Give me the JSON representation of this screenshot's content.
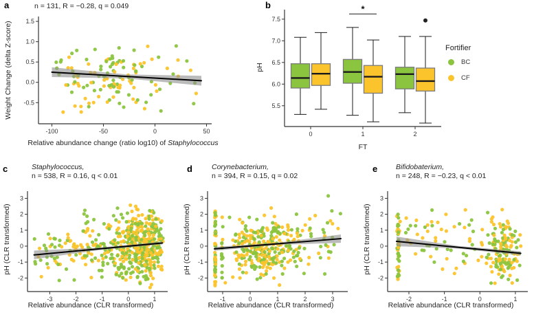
{
  "palette": {
    "green": "#8bc53f",
    "yellow": "#fcc42c",
    "band": "#8e8e8e",
    "regression_line": "#000000",
    "box_border": "#7a7a7a",
    "median_line": "#1a1a1a",
    "axis": "#333333"
  },
  "legend": {
    "title": "Fortifier",
    "items": [
      {
        "label": "BC",
        "color_key": "green"
      },
      {
        "label": "CF",
        "color_key": "yellow"
      }
    ]
  },
  "chart_data": [
    {
      "panel": "a",
      "type": "scatter",
      "title_lines": [
        {
          "text": "n = 131, R = −0.28, q = 0.049",
          "italic": false
        }
      ],
      "stats": {
        "n": 131,
        "R": -0.28,
        "q": "0.049"
      },
      "xlabel_parts": [
        {
          "text": "Relative abundance change (ratio log10) of ",
          "italic": false
        },
        {
          "text": "Staphylococcus",
          "italic": true
        }
      ],
      "ylabel": "Weight Change (delta Z-score)",
      "xlim": [
        -113,
        55
      ],
      "ylim": [
        -1.02,
        1.62
      ],
      "xticks": [
        [
          -100,
          "-100"
        ],
        [
          -50,
          "-50"
        ],
        [
          0,
          "0"
        ],
        [
          50,
          "50"
        ]
      ],
      "yticks": [
        [
          1.5,
          "1.5"
        ],
        [
          1.0,
          "1.0"
        ],
        [
          0.5,
          "0.5"
        ],
        [
          0.0,
          "0.0"
        ],
        [
          -0.5,
          "-0.5"
        ]
      ],
      "regression": {
        "x1": -100,
        "y1": 0.25,
        "x2": 45,
        "y2": 0.04,
        "band": [
          0.12,
          0.05,
          0.12
        ]
      },
      "points": {
        "seed": 11,
        "n": 131,
        "clip": {
          "x": [
            -101,
            45
          ],
          "y": [
            -0.86,
            0.91
          ]
        },
        "clusters": [
          {
            "w": 0.5,
            "x": {
              "t": "n",
              "mu": -30,
              "sd": 28
            },
            "y": {
              "t": "n",
              "mu": 0.15,
              "sd": 0.4
            }
          },
          {
            "w": 0.3,
            "x": {
              "t": "n",
              "mu": -65,
              "sd": 22
            },
            "y": {
              "t": "n",
              "mu": 0.1,
              "sd": 0.42
            }
          },
          {
            "w": 0.2,
            "x": {
              "t": "u",
              "min": -100,
              "max": 40
            },
            "y": {
              "t": "u",
              "min": -0.6,
              "max": 0.9
            }
          }
        ]
      }
    },
    {
      "panel": "b",
      "type": "boxplot",
      "xlabel": "FT",
      "ylabel": "pH",
      "ylim": [
        5.02,
        7.72
      ],
      "yticks": [
        [
          5.5,
          "5.5"
        ],
        [
          6.0,
          "6.0"
        ],
        [
          6.5,
          "6.5"
        ],
        [
          7.0,
          "7.0"
        ],
        [
          7.5,
          "7.5"
        ]
      ],
      "groups": [
        {
          "label": "0",
          "boxes": [
            {
              "fortifier": "BC",
              "color": "green",
              "whislo": 5.3,
              "q1": 5.91,
              "med": 6.14,
              "q3": 6.47,
              "whishi": 7.08,
              "outliers": []
            },
            {
              "fortifier": "CF",
              "color": "yellow",
              "whislo": 5.42,
              "q1": 5.97,
              "med": 6.24,
              "q3": 6.47,
              "whishi": 7.19,
              "outliers": []
            }
          ]
        },
        {
          "label": "1",
          "boxes": [
            {
              "fortifier": "BC",
              "color": "green",
              "whislo": 5.28,
              "q1": 6.02,
              "med": 6.28,
              "q3": 6.57,
              "whishi": 7.31,
              "outliers": []
            },
            {
              "fortifier": "CF",
              "color": "yellow",
              "whislo": 5.13,
              "q1": 5.79,
              "med": 6.17,
              "q3": 6.43,
              "whishi": 7.02,
              "outliers": []
            }
          ]
        },
        {
          "label": "2",
          "boxes": [
            {
              "fortifier": "BC",
              "color": "green",
              "whislo": 5.34,
              "q1": 5.89,
              "med": 6.23,
              "q3": 6.39,
              "whishi": 7.1,
              "outliers": []
            },
            {
              "fortifier": "CF",
              "color": "yellow",
              "whislo": 5.1,
              "q1": 5.84,
              "med": 6.07,
              "q3": 6.37,
              "whishi": 7.1,
              "outliers": [
                7.47
              ]
            }
          ]
        }
      ],
      "significance": {
        "group_index": 1,
        "symbol": "*",
        "y": 7.62
      }
    },
    {
      "panel": "c",
      "type": "scatter",
      "title_lines": [
        {
          "text": "Staphylococcus,",
          "italic": true
        },
        {
          "text": "n = 538, R = 0.16, q < 0.01",
          "italic": false
        }
      ],
      "stats": {
        "n": 538,
        "R": 0.16,
        "q": "< 0.01"
      },
      "xlabel_parts": [
        {
          "text": "Relative abundance (CLR transformed)",
          "italic": false
        }
      ],
      "ylabel": "pH (CLR transformed)",
      "xlim": [
        -3.85,
        1.5
      ],
      "ylim": [
        -2.85,
        3.45
      ],
      "xticks": [
        [
          -3,
          "-3"
        ],
        [
          -2,
          "-2"
        ],
        [
          -1,
          "-1"
        ],
        [
          0,
          "0"
        ],
        [
          1,
          "1"
        ]
      ],
      "yticks": [
        [
          3,
          "3"
        ],
        [
          2,
          "2"
        ],
        [
          1,
          "1"
        ],
        [
          0,
          "0"
        ],
        [
          -1,
          "-1"
        ],
        [
          -2,
          "-2"
        ]
      ],
      "regression": {
        "x1": -3.6,
        "y1": -0.55,
        "x2": 1.3,
        "y2": 0.2,
        "band": [
          0.27,
          0.08,
          0.09
        ]
      },
      "points": {
        "seed": 23,
        "n": 538,
        "clip": {
          "x": [
            -3.62,
            1.32
          ],
          "y": [
            -2.62,
            3.2
          ]
        },
        "clusters": [
          {
            "w": 0.6,
            "x": {
              "t": "n",
              "mu": 0.55,
              "sd": 0.5
            },
            "y": {
              "t": "n",
              "mu": 0.0,
              "sd": 1.05
            }
          },
          {
            "w": 0.3,
            "x": {
              "t": "n",
              "mu": -0.6,
              "sd": 0.9
            },
            "y": {
              "t": "n",
              "mu": -0.15,
              "sd": 1.0
            }
          },
          {
            "w": 0.1,
            "x": {
              "t": "u",
              "min": -3.6,
              "max": -1.2
            },
            "y": {
              "t": "n",
              "mu": -0.4,
              "sd": 0.85
            }
          }
        ]
      }
    },
    {
      "panel": "d",
      "type": "scatter",
      "title_lines": [
        {
          "text": "Corynebacterium,",
          "italic": true
        },
        {
          "text": "n = 394, R = 0.15, q = 0.02",
          "italic": false
        }
      ],
      "stats": {
        "n": 394,
        "R": 0.15,
        "q": "0.02"
      },
      "xlabel_parts": [
        {
          "text": "Relative abundance (CLR transformed)",
          "italic": false
        }
      ],
      "ylabel": "pH (CLR transformed)",
      "xlim": [
        -1.55,
        3.55
      ],
      "ylim": [
        -2.85,
        3.45
      ],
      "xticks": [
        [
          -1,
          "-1"
        ],
        [
          0,
          "0"
        ],
        [
          1,
          "1"
        ],
        [
          2,
          "2"
        ],
        [
          3,
          "3"
        ]
      ],
      "yticks": [
        [
          3,
          "3"
        ],
        [
          2,
          "2"
        ],
        [
          1,
          "1"
        ],
        [
          0,
          "0"
        ],
        [
          -1,
          "-1"
        ],
        [
          -2,
          "-2"
        ]
      ],
      "regression": {
        "x1": -1.3,
        "y1": -0.17,
        "x2": 3.3,
        "y2": 0.47,
        "band": [
          0.12,
          0.07,
          0.26
        ]
      },
      "points": {
        "seed": 37,
        "n": 394,
        "clip": {
          "x": [
            -1.31,
            3.32
          ],
          "y": [
            -2.62,
            3.2
          ]
        },
        "clusters": [
          {
            "w": 0.12,
            "x": {
              "t": "n",
              "mu": -1.27,
              "sd": 0.012
            },
            "y": {
              "t": "u",
              "min": -2.5,
              "max": 2.2
            }
          },
          {
            "w": 0.06,
            "x": {
              "t": "n",
              "mu": -1.02,
              "sd": 0.015
            },
            "y": {
              "t": "u",
              "min": -2.2,
              "max": 2.1
            }
          },
          {
            "w": 0.56,
            "x": {
              "t": "n",
              "mu": 0.25,
              "sd": 0.55
            },
            "y": {
              "t": "n",
              "mu": -0.1,
              "sd": 0.95
            }
          },
          {
            "w": 0.17,
            "x": {
              "t": "n",
              "mu": 1.1,
              "sd": 0.5
            },
            "y": {
              "t": "n",
              "mu": 0.1,
              "sd": 0.95
            }
          },
          {
            "w": 0.09,
            "x": {
              "t": "u",
              "min": 1.7,
              "max": 3.3
            },
            "y": {
              "t": "n",
              "mu": 0.4,
              "sd": 0.95
            }
          }
        ]
      }
    },
    {
      "panel": "e",
      "type": "scatter",
      "title_lines": [
        {
          "text": "Bifidobaterium,",
          "italic": true
        },
        {
          "text": "n = 248, R = −0.23, q < 0.01",
          "italic": false
        }
      ],
      "stats": {
        "n": 248,
        "R": -0.23,
        "q": "< 0.01"
      },
      "xlabel_parts": [
        {
          "text": "Relative abundance (CLR transformed)",
          "italic": false
        }
      ],
      "ylabel": "pH (CLR transformed)",
      "xlim": [
        -2.6,
        1.35
      ],
      "ylim": [
        -2.85,
        3.45
      ],
      "xticks": [
        [
          -2,
          "-2"
        ],
        [
          -1,
          "-1"
        ],
        [
          0,
          "0"
        ],
        [
          1,
          "1"
        ]
      ],
      "yticks": [
        [
          3,
          "3"
        ],
        [
          2,
          "2"
        ],
        [
          1,
          "1"
        ],
        [
          0,
          "0"
        ],
        [
          -1,
          "-1"
        ],
        [
          -2,
          "-2"
        ]
      ],
      "regression": {
        "x1": -2.35,
        "y1": 0.3,
        "x2": 1.15,
        "y2": -0.45,
        "band": [
          0.3,
          0.08,
          0.13
        ]
      },
      "points": {
        "seed": 51,
        "n": 248,
        "clip": {
          "x": [
            -2.34,
            1.16
          ],
          "y": [
            -2.62,
            2.3
          ]
        },
        "clusters": [
          {
            "w": 0.13,
            "x": {
              "t": "n",
              "mu": -2.3,
              "sd": 0.02
            },
            "y": {
              "t": "u",
              "min": -2.1,
              "max": 2.0
            }
          },
          {
            "w": 0.22,
            "x": {
              "t": "u",
              "min": -2.1,
              "max": -0.15
            },
            "y": {
              "t": "n",
              "mu": 0.1,
              "sd": 1.05
            }
          },
          {
            "w": 0.65,
            "x": {
              "t": "n",
              "mu": 0.62,
              "sd": 0.28
            },
            "y": {
              "t": "n",
              "mu": -0.3,
              "sd": 1.0
            }
          }
        ]
      }
    }
  ]
}
